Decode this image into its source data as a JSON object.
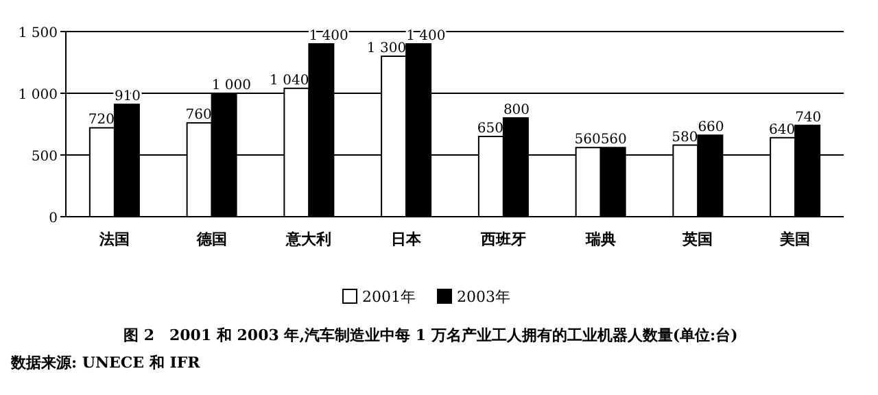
{
  "chart_data": {
    "type": "bar",
    "categories": [
      "法国",
      "德国",
      "意大利",
      "日本",
      "西班牙",
      "瑞典",
      "英国",
      "美国"
    ],
    "series": [
      {
        "name": "2001年",
        "color": "#ffffff",
        "values": [
          720,
          760,
          1040,
          1300,
          650,
          560,
          580,
          640
        ],
        "value_labels": [
          "720",
          "760",
          "1 040",
          "1 300",
          "650",
          "560",
          "580",
          "640"
        ]
      },
      {
        "name": "2003年",
        "color": "#000000",
        "values": [
          910,
          1000,
          1400,
          1400,
          800,
          560,
          660,
          740
        ],
        "value_labels": [
          "910",
          "1 000",
          "1 400",
          "1 400",
          "800",
          "560",
          "660",
          "740"
        ]
      }
    ],
    "ylim": [
      0,
      1500
    ],
    "yticks": [
      0,
      500,
      {
        "value": 1000,
        "label": "1 000"
      },
      {
        "value": 1500,
        "label": "1 500"
      }
    ],
    "grid": "y",
    "legend": "bottom",
    "annotations": [
      "图 2　2001 和 2003 年,汽车制造业中每 1 万名产业工人拥有的工业机器人数量(单位:台)",
      "数据来源: UNECE 和 IFR"
    ]
  }
}
